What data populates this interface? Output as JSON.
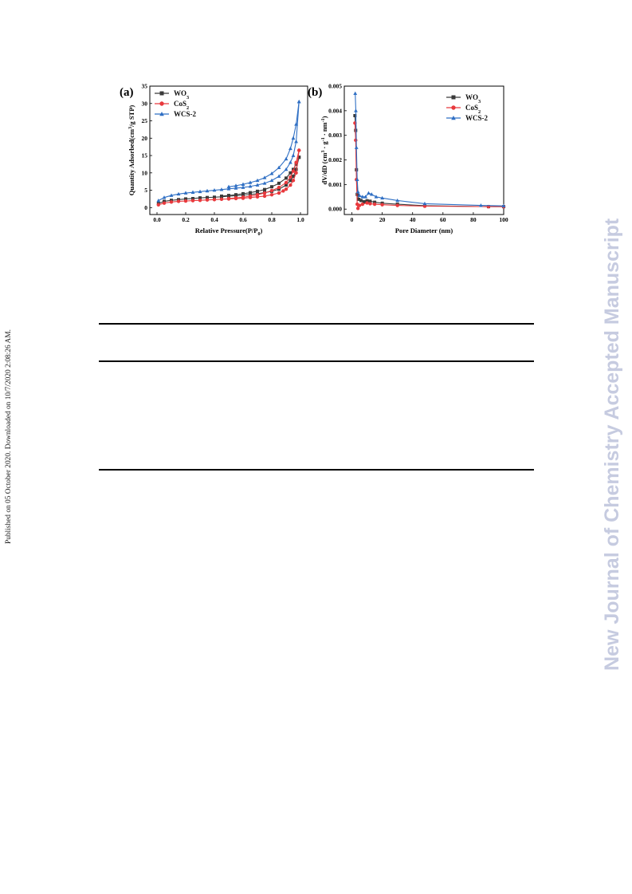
{
  "side_note": "Published on 05 October 2020. Downloaded on 10/7/2020 2:08:26 AM.",
  "watermark": "New Journal of Chemistry Accepted Manuscript",
  "colors": {
    "WO3": "#3a3a3a",
    "CoS2": "#e8393d",
    "WCS-2": "#2f6fc4"
  },
  "chart_data": [
    {
      "type": "line",
      "panel_label": "(a)",
      "xlabel": "Relative Pressure(P/P0)",
      "ylabel": "Quantity Adsorbed(cm3/g STP)",
      "xlim": [
        -0.05,
        1.05
      ],
      "ylim": [
        -2,
        35
      ],
      "xticks": [
        0.0,
        0.2,
        0.4,
        0.6,
        0.8,
        1.0
      ],
      "xtick_labels": [
        "0.0",
        "0.2",
        "0.4",
        "0.6",
        "0.8",
        "1.0"
      ],
      "yticks": [
        0,
        5,
        10,
        15,
        20,
        25,
        30,
        35
      ],
      "ytick_labels": [
        "0",
        "5",
        "10",
        "15",
        "20",
        "25",
        "30",
        "35"
      ],
      "legend": [
        "WO3",
        "CoS2",
        "WCS-2"
      ],
      "legend_position": "top-left",
      "series": [
        {
          "name": "WO3",
          "color": "#3a3a3a",
          "marker": "square",
          "adsorption": [
            [
              0.01,
              1.2
            ],
            [
              0.05,
              1.8
            ],
            [
              0.1,
              2.1
            ],
            [
              0.15,
              2.3
            ],
            [
              0.2,
              2.5
            ],
            [
              0.25,
              2.6
            ],
            [
              0.3,
              2.8
            ],
            [
              0.35,
              2.9
            ],
            [
              0.4,
              3.0
            ],
            [
              0.45,
              3.1
            ],
            [
              0.5,
              3.3
            ],
            [
              0.55,
              3.4
            ],
            [
              0.6,
              3.6
            ],
            [
              0.65,
              3.8
            ],
            [
              0.7,
              4.0
            ],
            [
              0.75,
              4.3
            ],
            [
              0.8,
              4.7
            ],
            [
              0.85,
              5.3
            ],
            [
              0.9,
              6.5
            ],
            [
              0.93,
              7.8
            ],
            [
              0.95,
              9.0
            ],
            [
              0.97,
              11.0
            ],
            [
              0.99,
              14.5
            ]
          ],
          "desorption": [
            [
              0.99,
              14.5
            ],
            [
              0.97,
              12.5
            ],
            [
              0.95,
              11.0
            ],
            [
              0.93,
              10.0
            ],
            [
              0.9,
              8.5
            ],
            [
              0.85,
              7.0
            ],
            [
              0.8,
              6.0
            ],
            [
              0.75,
              5.2
            ],
            [
              0.7,
              4.7
            ],
            [
              0.65,
              4.3
            ],
            [
              0.6,
              4.0
            ],
            [
              0.55,
              3.7
            ],
            [
              0.5,
              3.5
            ],
            [
              0.45,
              3.3
            ]
          ]
        },
        {
          "name": "CoS2",
          "color": "#e8393d",
          "marker": "circle",
          "adsorption": [
            [
              0.01,
              0.8
            ],
            [
              0.05,
              1.3
            ],
            [
              0.1,
              1.6
            ],
            [
              0.15,
              1.8
            ],
            [
              0.2,
              1.9
            ],
            [
              0.25,
              2.0
            ],
            [
              0.3,
              2.1
            ],
            [
              0.35,
              2.2
            ],
            [
              0.4,
              2.3
            ],
            [
              0.45,
              2.4
            ],
            [
              0.5,
              2.5
            ],
            [
              0.55,
              2.6
            ],
            [
              0.6,
              2.7
            ],
            [
              0.65,
              2.9
            ],
            [
              0.7,
              3.1
            ],
            [
              0.75,
              3.3
            ],
            [
              0.8,
              3.7
            ],
            [
              0.85,
              4.2
            ],
            [
              0.88,
              4.8
            ],
            [
              0.9,
              5.3
            ],
            [
              0.93,
              6.5
            ],
            [
              0.95,
              7.8
            ],
            [
              0.97,
              10.0
            ],
            [
              0.99,
              16.5
            ]
          ],
          "desorption": [
            [
              0.99,
              16.5
            ],
            [
              0.97,
              13.0
            ],
            [
              0.95,
              10.5
            ],
            [
              0.93,
              8.8
            ],
            [
              0.9,
              7.2
            ],
            [
              0.85,
              5.8
            ],
            [
              0.8,
              4.9
            ],
            [
              0.75,
              4.2
            ],
            [
              0.7,
              3.7
            ],
            [
              0.65,
              3.3
            ],
            [
              0.6,
              3.0
            ],
            [
              0.55,
              2.8
            ],
            [
              0.5,
              2.6
            ]
          ]
        },
        {
          "name": "WCS-2",
          "color": "#2f6fc4",
          "marker": "triangle",
          "adsorption": [
            [
              0.01,
              2.0
            ],
            [
              0.05,
              2.9
            ],
            [
              0.1,
              3.5
            ],
            [
              0.15,
              3.9
            ],
            [
              0.2,
              4.2
            ],
            [
              0.25,
              4.4
            ],
            [
              0.3,
              4.6
            ],
            [
              0.35,
              4.8
            ],
            [
              0.4,
              5.0
            ],
            [
              0.45,
              5.2
            ],
            [
              0.5,
              5.4
            ],
            [
              0.55,
              5.6
            ],
            [
              0.6,
              5.8
            ],
            [
              0.65,
              6.1
            ],
            [
              0.7,
              6.5
            ],
            [
              0.75,
              7.0
            ],
            [
              0.8,
              7.8
            ],
            [
              0.85,
              9.0
            ],
            [
              0.9,
              11.0
            ],
            [
              0.93,
              13.0
            ],
            [
              0.95,
              15.0
            ],
            [
              0.97,
              19.0
            ],
            [
              0.99,
              30.5
            ]
          ],
          "desorption": [
            [
              0.99,
              30.5
            ],
            [
              0.97,
              24.0
            ],
            [
              0.95,
              20.0
            ],
            [
              0.93,
              17.0
            ],
            [
              0.9,
              14.0
            ],
            [
              0.85,
              11.5
            ],
            [
              0.8,
              9.8
            ],
            [
              0.75,
              8.6
            ],
            [
              0.7,
              7.8
            ],
            [
              0.65,
              7.2
            ],
            [
              0.6,
              6.7
            ],
            [
              0.55,
              6.3
            ],
            [
              0.5,
              6.0
            ]
          ]
        }
      ]
    },
    {
      "type": "line",
      "panel_label": "(b)",
      "xlabel": "Pore Diameter (nm)",
      "ylabel": "dV/dD (cm3 · g-1 · nm-1)",
      "xlim": [
        -5,
        100
      ],
      "ylim": [
        -0.00022,
        0.005
      ],
      "xticks": [
        0,
        20,
        40,
        60,
        80,
        100
      ],
      "xtick_labels": [
        "0",
        "20",
        "40",
        "60",
        "80",
        "100"
      ],
      "yticks": [
        0.0,
        0.001,
        0.002,
        0.003,
        0.004,
        0.005
      ],
      "ytick_labels": [
        "0.000",
        "0.001",
        "0.002",
        "0.003",
        "0.004",
        "0.005"
      ],
      "legend": [
        "WO3",
        "CoS2",
        "WCS-2"
      ],
      "legend_position": "top-right",
      "series": [
        {
          "name": "WO3",
          "color": "#3a3a3a",
          "marker": "square",
          "points": [
            [
              2.0,
              0.0038
            ],
            [
              2.5,
              0.0032
            ],
            [
              3.0,
              0.0016
            ],
            [
              3.5,
              0.0006
            ],
            [
              4.5,
              0.0004
            ],
            [
              6,
              0.00035
            ],
            [
              8,
              0.0003
            ],
            [
              10,
              0.00034
            ],
            [
              12,
              0.00032
            ],
            [
              15,
              0.00028
            ],
            [
              20,
              0.00024
            ],
            [
              30,
              0.0002
            ],
            [
              48,
              0.00014
            ],
            [
              90,
              0.0001
            ],
            [
              100,
              0.0001
            ]
          ]
        },
        {
          "name": "CoS2",
          "color": "#e8393d",
          "marker": "circle",
          "points": [
            [
              2.0,
              0.0035
            ],
            [
              2.5,
              0.0028
            ],
            [
              3.0,
              0.0012
            ],
            [
              3.5,
              0.0002
            ],
            [
              4.0,
              3e-05
            ],
            [
              5,
              0.00015
            ],
            [
              7,
              0.0002
            ],
            [
              10,
              0.00025
            ],
            [
              12,
              0.00022
            ],
            [
              15,
              0.0002
            ],
            [
              20,
              0.00018
            ],
            [
              30,
              0.00015
            ],
            [
              48,
              0.00012
            ],
            [
              90,
              0.0001
            ],
            [
              100,
              0.0001
            ]
          ]
        },
        {
          "name": "WCS-2",
          "color": "#2f6fc4",
          "marker": "triangle",
          "points": [
            [
              2.2,
              0.0047
            ],
            [
              2.6,
              0.004
            ],
            [
              3.0,
              0.0025
            ],
            [
              3.5,
              0.0012
            ],
            [
              4.0,
              0.0007
            ],
            [
              5,
              0.00055
            ],
            [
              7,
              0.0005
            ],
            [
              9,
              0.0005
            ],
            [
              11,
              0.00065
            ],
            [
              13,
              0.0006
            ],
            [
              16,
              0.0005
            ],
            [
              20,
              0.00045
            ],
            [
              30,
              0.00035
            ],
            [
              48,
              0.00022
            ],
            [
              85,
              0.00015
            ],
            [
              100,
              0.00013
            ]
          ]
        }
      ]
    }
  ]
}
